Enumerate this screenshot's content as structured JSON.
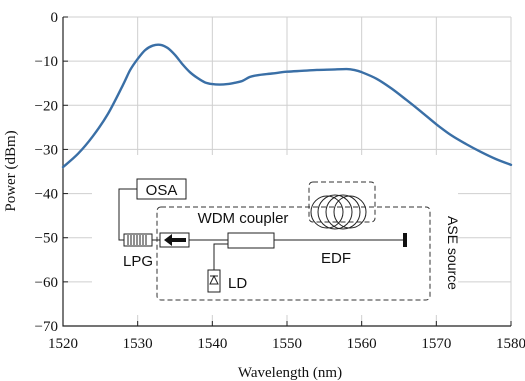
{
  "chart_data": {
    "type": "line",
    "title": "",
    "xlabel": "Wavelength (nm)",
    "ylabel": "Power (dBm)",
    "xlim": [
      1520,
      1580
    ],
    "ylim": [
      -70,
      0
    ],
    "x_ticks": [
      1520,
      1530,
      1540,
      1550,
      1560,
      1570,
      1580
    ],
    "y_ticks": [
      0,
      -10,
      -20,
      -30,
      -40,
      -50,
      -60,
      -70
    ],
    "y_tick_labels": [
      "0",
      "−10",
      "−20",
      "−30",
      "−40",
      "−50",
      "−60",
      "−70"
    ],
    "grid": true,
    "line_color": "#3a6fa6",
    "series": [
      {
        "x": [
          1520,
          1522,
          1524,
          1526,
          1528,
          1529,
          1530,
          1531,
          1532,
          1533,
          1534,
          1535,
          1536,
          1537,
          1538,
          1539,
          1540,
          1541,
          1542,
          1543,
          1544,
          1545,
          1546,
          1548,
          1550,
          1552,
          1554,
          1556,
          1558,
          1559,
          1560,
          1562,
          1564,
          1566,
          1568,
          1570,
          1572,
          1574,
          1576,
          1578,
          1580
        ],
        "values": [
          -34,
          -31,
          -27,
          -22,
          -15.5,
          -12,
          -9.5,
          -7.5,
          -6.5,
          -6.3,
          -7,
          -8.6,
          -10.7,
          -12.5,
          -13.8,
          -14.8,
          -15.2,
          -15.3,
          -15.2,
          -14.9,
          -14.5,
          -13.6,
          -13.2,
          -12.8,
          -12.4,
          -12.2,
          -12,
          -11.9,
          -11.8,
          -12,
          -12.5,
          -14,
          -16.2,
          -18.8,
          -21.5,
          -24.3,
          -26.8,
          -28.8,
          -30.6,
          -32.2,
          -33.5
        ]
      }
    ],
    "inset_labels": {
      "osa": "OSA",
      "lpg": "LPG",
      "wdm": "WDM coupler",
      "ld": "LD",
      "edf": "EDF",
      "ase": "ASE source"
    }
  }
}
